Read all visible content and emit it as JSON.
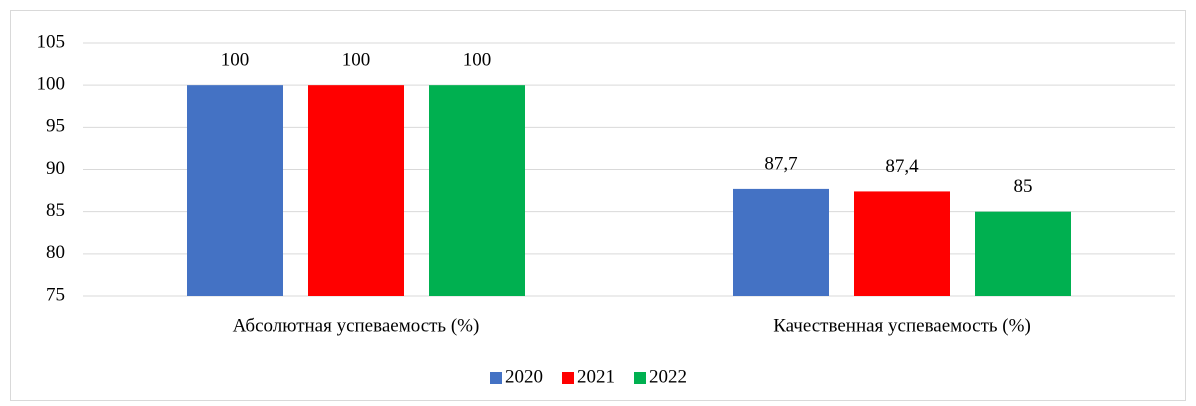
{
  "chart_data": {
    "type": "bar",
    "categories": [
      "Абсолютная успеваемость (%)",
      "Качественная успеваемость (%)"
    ],
    "series": [
      {
        "name": "2020",
        "color": "#4472c4",
        "values": [
          100,
          87.7
        ],
        "value_labels": [
          "100",
          "87,7"
        ]
      },
      {
        "name": "2021",
        "color": "#ff0000",
        "values": [
          100,
          87.4
        ],
        "value_labels": [
          "100",
          "87,4"
        ]
      },
      {
        "name": "2022",
        "color": "#00b050",
        "values": [
          100,
          85
        ],
        "value_labels": [
          "100",
          "85"
        ]
      }
    ],
    "ylim": [
      75,
      105
    ],
    "yticks": [
      75,
      80,
      85,
      90,
      95,
      100,
      105
    ],
    "grid": true,
    "legend": "bottom"
  }
}
